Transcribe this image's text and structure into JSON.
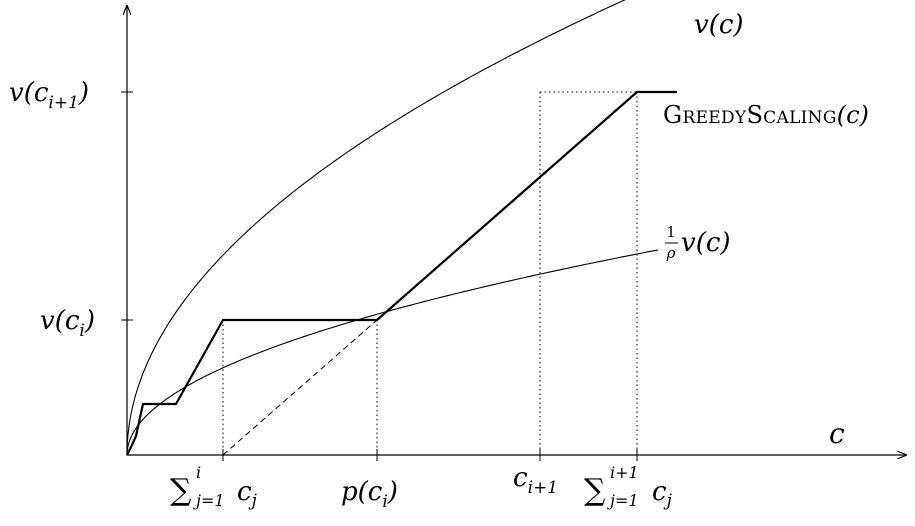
{
  "diagram": {
    "axis_labels": {
      "x": "c"
    },
    "curve_labels": {
      "v": "v(c)",
      "greedy_name": "GreedyScaling",
      "greedy_arg": "(c)",
      "scaled_numerator": "1",
      "scaled_denominator": "ρ",
      "scaled_rest": "v(c)"
    },
    "y_ticks": {
      "v_ci1": {
        "base": "v(c",
        "sub": "i+1",
        "close": ")"
      },
      "v_ci": {
        "base": "v(c",
        "sub": "i",
        "close": ")"
      }
    },
    "x_ticks": {
      "sum_i": {
        "sum": "∑",
        "sup": "i",
        "sub": "j=1",
        "term": "c",
        "term_sub": "j"
      },
      "p_ci": {
        "base": "p(c",
        "sub": "i",
        "close": ")"
      },
      "c_i1": {
        "base": "c",
        "sub": "i+1"
      },
      "sum_i1": {
        "sum": "∑",
        "sup": "i+1",
        "sub": "j=1",
        "term": "c",
        "term_sub": "j"
      }
    }
  }
}
